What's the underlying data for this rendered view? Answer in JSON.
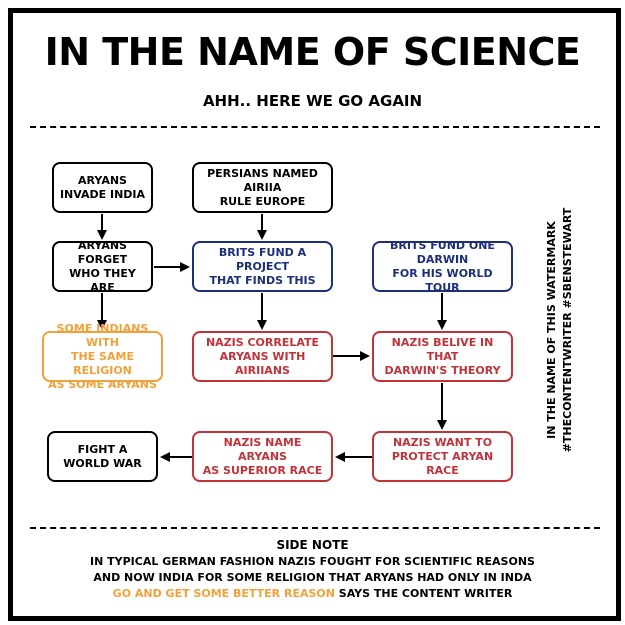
{
  "title": "IN THE NAME OF SCIENCE",
  "subtitle": "AHH.. HERE WE GO AGAIN",
  "colors": {
    "black": "#000000",
    "blue": "#1c2f7a",
    "red": "#c0333a",
    "orange": "#f2a13a"
  },
  "nodes": {
    "aryans_invade": "ARYANS\nINVADE INDIA",
    "persians_rule": "PERSIANS NAMED AIRIIA\nRULE EUROPE",
    "aryans_forget": "ARYANS FORGET\nWHO THEY ARE",
    "brits_fund_project": "BRITS FUND A PROJECT\nTHAT FINDS THIS",
    "brits_fund_darwin": "BRITS FUND ONE DARWIN\nFOR HIS WORLD TOUR",
    "some_indians": "SOME INDIANS WITH\nTHE SAME RELIGION\nAS SOME ARYANS",
    "nazis_correlate": "NAZIS CORRELATE\nARYANS WITH AIRIIANS",
    "nazis_belive": "NAZIS BELIVE IN THAT\nDARWIN'S THEORY",
    "fight_war": "FIGHT A\nWORLD WAR",
    "nazis_name": "NAZIS NAME ARYANS\nAS SUPERIOR RACE",
    "nazis_want": "NAZIS WANT TO\nPROTECT ARYAN RACE"
  },
  "watermark": {
    "line1": "IN THE NAME OF THIS WATERMARK",
    "line2": "#THECONTENTWRITER #SBENSTEWART"
  },
  "side_note": {
    "heading": "SIDE NOTE",
    "line1": "IN TYPICAL GERMAN FASHION NAZIS FOUGHT FOR SCIENTIFIC REASONS",
    "line2": "AND NOW INDIA FOR SOME RELIGION THAT ARYANS HAD ONLY IN INDA",
    "line3_highlight": "GO AND GET SOME BETTER REASON",
    "line3_rest": " SAYS THE CONTENT WRITER"
  }
}
